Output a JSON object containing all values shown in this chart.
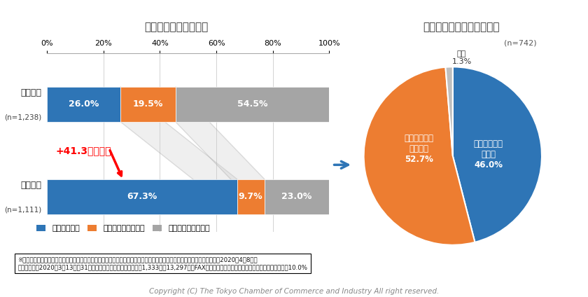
{
  "bar_title": "テレワークの実施割合",
  "pie_title": "テレワークを開始した時期",
  "pie_n": "(n=742)",
  "bar_rows": [
    {
      "label": "前回調査",
      "sublabel": "(n=1,238)",
      "values": [
        26.0,
        19.5,
        54.5
      ]
    },
    {
      "label": "今回調査",
      "sublabel": "(n=1,111)",
      "values": [
        67.3,
        9.7,
        23.0
      ]
    }
  ],
  "bar_colors": [
    "#2E75B6",
    "#ED7D31",
    "#A5A5A5"
  ],
  "legend_labels": [
    "実施している",
    "実施を検討している",
    "実施する予定はない"
  ],
  "pie_values": [
    46.0,
    52.7,
    1.3
  ],
  "pie_colors": [
    "#2E75B6",
    "#ED7D31",
    "#BFBFBF"
  ],
  "annotation_text": "+41.3ポイント",
  "footnote_line1": "※前回調査：「会員企業の防災対策に関するアンケート　付帯調査　新型コロナウイルス感染症への対応について」（公表：2020年4月8日）",
  "footnote_line2": "　調査期間：2020年3月13日～31日　／　回答企業：東商会員企業1,333社（13,297件にFAX・メールにて調査票を送付し依頼）　／　回答率：10.0%",
  "copyright": "Copyright (C) The Tokyo Chamber of Commerce and Industry All right reserved.",
  "bg_color": "#FFFFFF"
}
